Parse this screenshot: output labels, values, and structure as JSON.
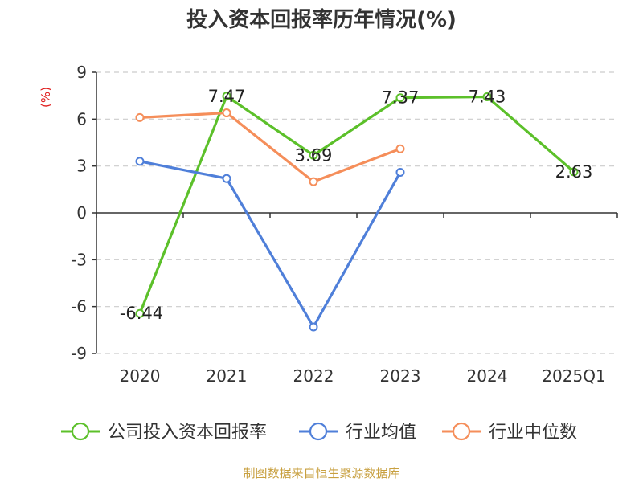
{
  "chart_data": {
    "type": "line",
    "title": "投入资本回报率历年情况(%)",
    "ylabel": "(%)",
    "categories": [
      "2020",
      "2021",
      "2022",
      "2023",
      "2024",
      "2025Q1"
    ],
    "ylim": [
      -9,
      9
    ],
    "yticks": [
      9,
      6,
      3,
      0,
      -3,
      -6,
      -9
    ],
    "grid": true,
    "legend_position": "bottom",
    "series": [
      {
        "name": "公司投入资本回报率",
        "color": "#5cc02a",
        "values": [
          -6.44,
          7.47,
          3.69,
          7.37,
          7.43,
          2.63
        ],
        "labels": [
          "-6.44",
          "7.47",
          "3.69",
          "7.37",
          "7.43",
          "2.63"
        ]
      },
      {
        "name": "行业均值",
        "color": "#4f7fd9",
        "values": [
          3.3,
          2.2,
          -7.3,
          2.6,
          null,
          null
        ]
      },
      {
        "name": "行业中位数",
        "color": "#f58e5a",
        "values": [
          6.1,
          6.4,
          2.0,
          4.1,
          null,
          null
        ]
      }
    ]
  },
  "source": "制图数据来自恒生聚源数据库"
}
